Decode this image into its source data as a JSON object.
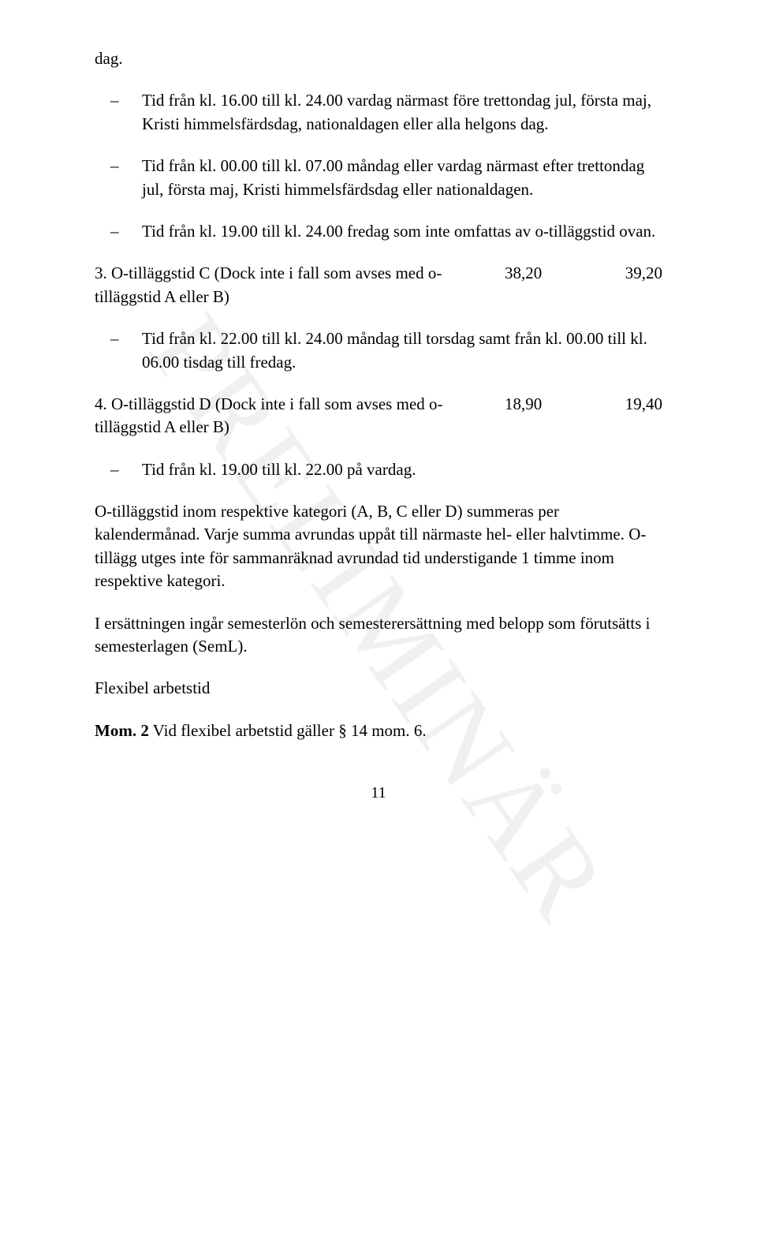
{
  "watermark": "PRELIMINÄR",
  "p_top": "dag.",
  "list1": {
    "dash": "–",
    "items": [
      "Tid från kl. 16.00 till kl. 24.00 vardag närmast före trettondag jul, första maj, Kristi himmelsfärdsdag, nationaldagen eller alla helgons dag.",
      "Tid från kl. 00.00 till kl. 07.00 måndag eller vardag närmast efter trettondag jul, första maj, Kristi himmelsfärdsdag eller nationaldagen.",
      "Tid från kl. 19.00 till kl. 24.00 fredag som inte omfattas av o-tilläggstid ovan."
    ]
  },
  "item3": {
    "label": "3.   O-tilläggstid C (Dock inte i fall som avses med o-tilläggstid A eller B)",
    "v1": "38,20",
    "v2": "39,20"
  },
  "list2": {
    "dash": "–",
    "items": [
      "Tid från kl. 22.00 till kl. 24.00 måndag till torsdag samt från kl. 00.00 till kl. 06.00 tisdag till fredag."
    ]
  },
  "item4": {
    "label": "4.   O-tilläggstid D (Dock inte i fall som avses med o-tilläggstid A eller B)",
    "v1": "18,90",
    "v2": "19,40"
  },
  "list3": {
    "dash": "–",
    "items": [
      "Tid från kl. 19.00 till kl. 22.00 på vardag."
    ]
  },
  "p_sum": "O-tilläggstid inom respektive kategori (A, B, C eller D) summeras per kalendermånad. Varje summa avrundas uppåt till närmaste hel- eller halvtimme. O-tillägg utges inte för sammanräknad avrundad tid understigande 1 timme inom respektive kategori.",
  "p_ers": "I ersättningen ingår semesterlön och semesterersättning med belopp som förutsätts i semesterlagen (SemL).",
  "p_flex": "Flexibel arbetstid",
  "p_mom_label": "Mom. 2",
  "p_mom_text": "   Vid flexibel arbetstid gäller § 14 mom. 6.",
  "pagenum": "11"
}
